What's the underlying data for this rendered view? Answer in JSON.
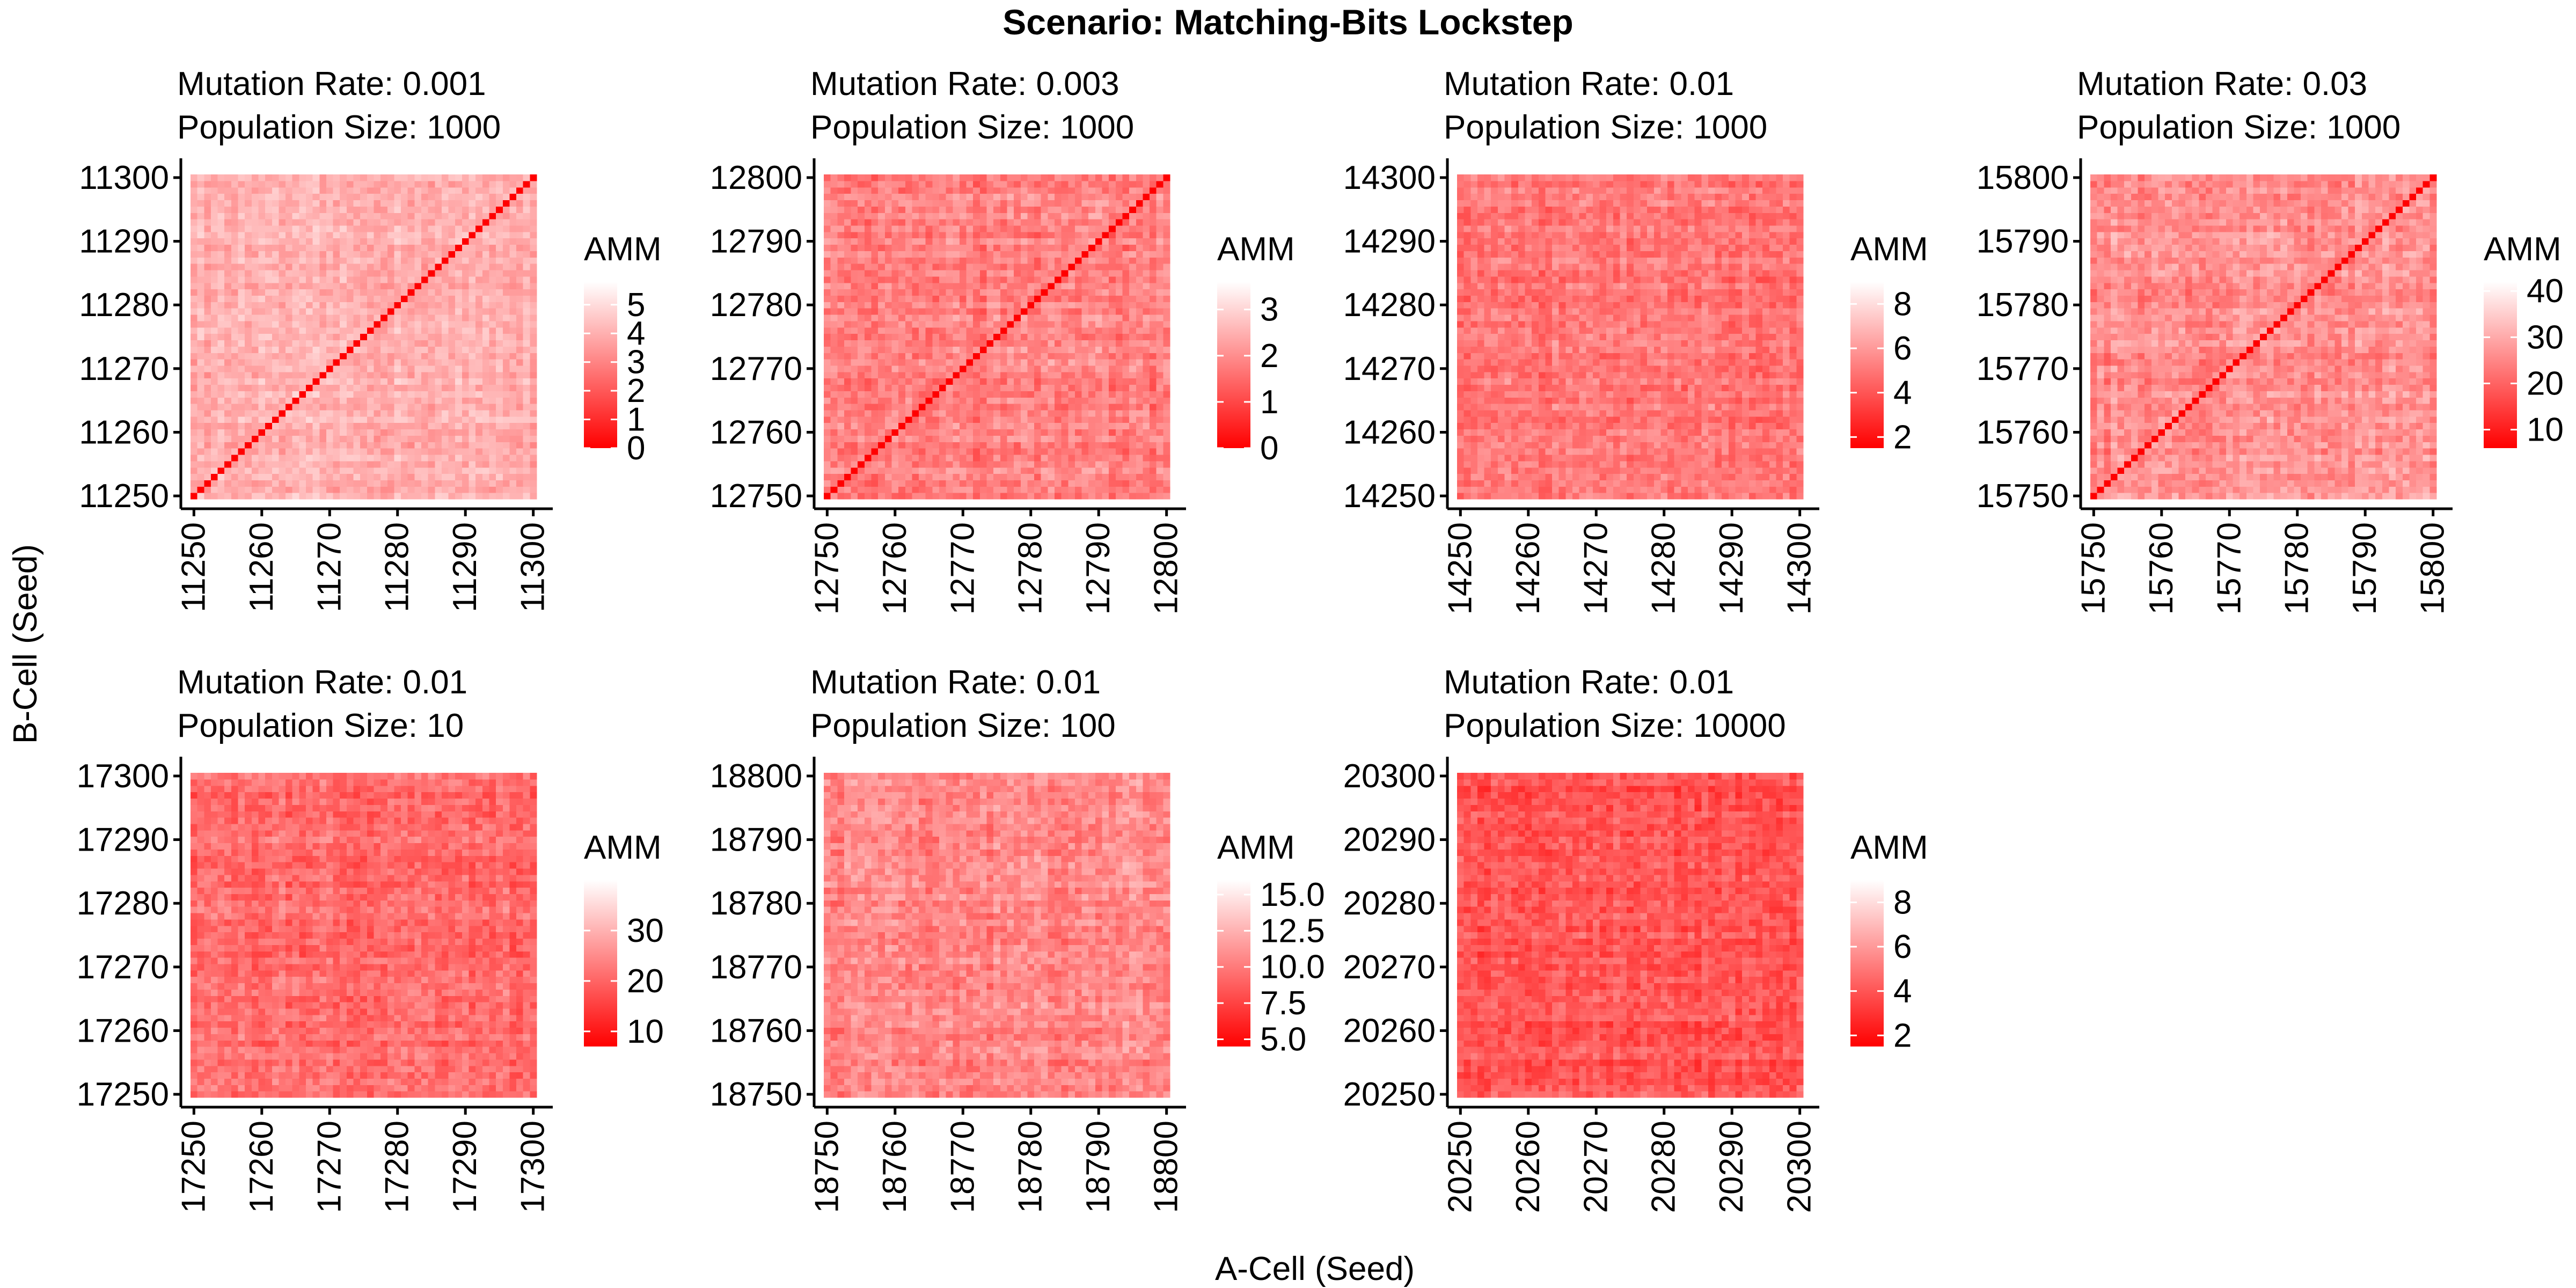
{
  "title": "Scenario: Matching-Bits Lockstep",
  "xlabel": "A-Cell (Seed)",
  "ylabel": "B-Cell (Seed)",
  "chart_data": [
    {
      "type": "heatmap",
      "title": "Mutation Rate: 0.001",
      "subtitle": "Population Size: 1000",
      "mutation_rate": 0.001,
      "population_size": 1000,
      "seed_start": 11250,
      "seed_end": 11300,
      "ticks": [
        "11250",
        "11260",
        "11270",
        "11280",
        "11290",
        "11300"
      ],
      "legend_title": "AMM",
      "legend_ticks": [
        "0",
        "1",
        "2",
        "3",
        "4",
        "5"
      ],
      "value_range": [
        0,
        5.8
      ],
      "typical_range": [
        3,
        5
      ],
      "diagonal_zero": true
    },
    {
      "type": "heatmap",
      "title": "Mutation Rate: 0.003",
      "subtitle": "Population Size: 1000",
      "mutation_rate": 0.003,
      "population_size": 1000,
      "seed_start": 12750,
      "seed_end": 12800,
      "ticks": [
        "12750",
        "12760",
        "12770",
        "12780",
        "12790",
        "12800"
      ],
      "legend_title": "AMM",
      "legend_ticks": [
        "0",
        "1",
        "2",
        "3"
      ],
      "value_range": [
        0,
        3.6
      ],
      "typical_range": [
        1,
        2.6
      ],
      "diagonal_zero": true
    },
    {
      "type": "heatmap",
      "title": "Mutation Rate: 0.01",
      "subtitle": "Population Size: 1000",
      "mutation_rate": 0.01,
      "population_size": 1000,
      "seed_start": 14250,
      "seed_end": 14300,
      "ticks": [
        "14250",
        "14260",
        "14270",
        "14280",
        "14290",
        "14300"
      ],
      "legend_title": "AMM",
      "legend_ticks": [
        "2",
        "4",
        "6",
        "8"
      ],
      "value_range": [
        1.5,
        9
      ],
      "typical_range": [
        3.5,
        6.5
      ],
      "diagonal_zero": false
    },
    {
      "type": "heatmap",
      "title": "Mutation Rate: 0.03",
      "subtitle": "Population Size: 1000",
      "mutation_rate": 0.03,
      "population_size": 1000,
      "seed_start": 15750,
      "seed_end": 15800,
      "ticks": [
        "15750",
        "15760",
        "15770",
        "15780",
        "15790",
        "15800"
      ],
      "legend_title": "AMM",
      "legend_ticks": [
        "10",
        "20",
        "30",
        "40"
      ],
      "value_range": [
        6,
        42
      ],
      "typical_range": [
        18,
        34
      ],
      "diagonal_zero": true
    },
    {
      "type": "heatmap",
      "title": "Mutation Rate: 0.01",
      "subtitle": "Population Size: 10",
      "mutation_rate": 0.01,
      "population_size": 10,
      "seed_start": 17250,
      "seed_end": 17300,
      "ticks": [
        "17250",
        "17260",
        "17270",
        "17280",
        "17290",
        "17300"
      ],
      "legend_title": "AMM",
      "legend_ticks": [
        "10",
        "20",
        "30"
      ],
      "value_range": [
        7,
        40
      ],
      "typical_range": [
        14,
        28
      ],
      "diagonal_zero": false
    },
    {
      "type": "heatmap",
      "title": "Mutation Rate: 0.01",
      "subtitle": "Population Size: 100",
      "mutation_rate": 0.01,
      "population_size": 100,
      "seed_start": 18750,
      "seed_end": 18800,
      "ticks": [
        "18750",
        "18760",
        "18770",
        "18780",
        "18790",
        "18800"
      ],
      "legend_title": "AMM",
      "legend_ticks": [
        "5.0",
        "7.5",
        "10.0",
        "12.5",
        "15.0"
      ],
      "value_range": [
        4.5,
        16
      ],
      "typical_range": [
        8,
        13
      ],
      "diagonal_zero": false
    },
    {
      "type": "heatmap",
      "title": "Mutation Rate: 0.01",
      "subtitle": "Population Size: 10000",
      "mutation_rate": 0.01,
      "population_size": 10000,
      "seed_start": 20250,
      "seed_end": 20300,
      "ticks": [
        "20250",
        "20260",
        "20270",
        "20280",
        "20290",
        "20300"
      ],
      "legend_title": "AMM",
      "legend_ticks": [
        "2",
        "4",
        "6",
        "8"
      ],
      "value_range": [
        1.5,
        9
      ],
      "typical_range": [
        2.5,
        5.5
      ],
      "diagonal_zero": false
    }
  ],
  "colors": {
    "low": "#ff0000",
    "high": "#ffffff"
  }
}
